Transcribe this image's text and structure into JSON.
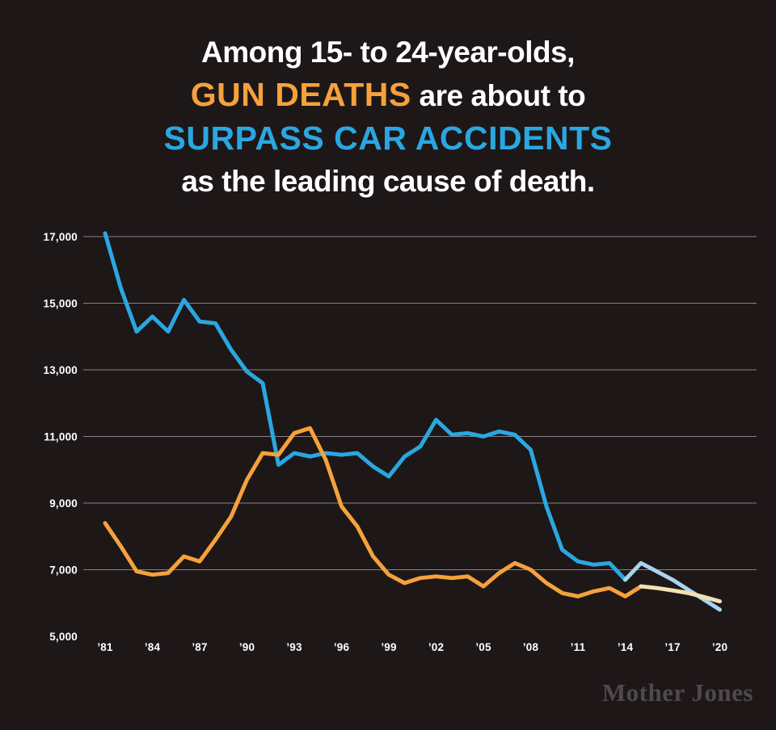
{
  "page": {
    "background": "#1d1718"
  },
  "title": {
    "line1": "Among 15- to 24-year-olds,",
    "line2_highlight": "GUN DEATHS",
    "line2_rest": " are about to",
    "line3": "SURPASS CAR ACCIDENTS",
    "line4": "as the leading cause of death."
  },
  "colors": {
    "background": "#1d1718",
    "text": "#ffffff",
    "grid": "#878183",
    "gun": "#f6a13b",
    "car": "#2aa7e1",
    "gun_projection": "#f4e0b2",
    "car_projection": "#a9d3ee"
  },
  "watermark": "Mother Jones",
  "chart_data": {
    "type": "line",
    "title": "Among 15- to 24-year-olds, GUN DEATHS are about to SURPASS CAR ACCIDENTS as the leading cause of death.",
    "x_start": 1981,
    "x_end": 2020,
    "x_tick_step": 3,
    "x_tick_labels": [
      "’81",
      "’84",
      "’87",
      "’90",
      "’93",
      "’96",
      "’99",
      "’02",
      "’05",
      "’08",
      "’11",
      "’14",
      "’17",
      "’20"
    ],
    "y_ticks": [
      17000,
      15000,
      13000,
      11000,
      9000,
      7000,
      5000
    ],
    "y_tick_labels": [
      "17,000",
      "15,000",
      "13,000",
      "11,000",
      "9,000",
      "7,000",
      "5,000"
    ],
    "gridline_values": [
      17000,
      15000,
      13000,
      11000,
      9000,
      7000
    ],
    "ylim": [
      5000,
      17600
    ],
    "grid": true,
    "legend": "none",
    "projection_note": "lighter line segments after 2014-2015 are projected values",
    "series": [
      {
        "id": "car-accidents",
        "name": "Car accidents",
        "color": "#2aa7e1",
        "projection_color": "#a9d3ee",
        "solid_until_year": 2014,
        "values": [
          17100,
          15450,
          14150,
          14600,
          14150,
          15100,
          14450,
          14400,
          13600,
          12950,
          12600,
          10150,
          10500,
          10400,
          10500,
          10450,
          10500,
          10100,
          9800,
          10400,
          10700,
          11500,
          11050,
          11100,
          11000,
          11150,
          11050,
          10600,
          8900,
          7600,
          7250,
          7150,
          7200,
          6700,
          7200,
          6950,
          6700,
          6400,
          6100,
          5800
        ]
      },
      {
        "id": "gun-deaths",
        "name": "Gun deaths",
        "color": "#f6a13b",
        "projection_color": "#f4e0b2",
        "solid_until_year": 2015,
        "values": [
          8400,
          7700,
          6950,
          6850,
          6900,
          7400,
          7250,
          7900,
          8600,
          9700,
          10500,
          10450,
          11100,
          11250,
          10300,
          8900,
          8300,
          7400,
          6850,
          6600,
          6750,
          6800,
          6750,
          6800,
          6500,
          6900,
          7200,
          7000,
          6600,
          6300,
          6200,
          6350,
          6450,
          6200,
          6500,
          6450,
          6380,
          6300,
          6180,
          6050
        ]
      }
    ]
  }
}
